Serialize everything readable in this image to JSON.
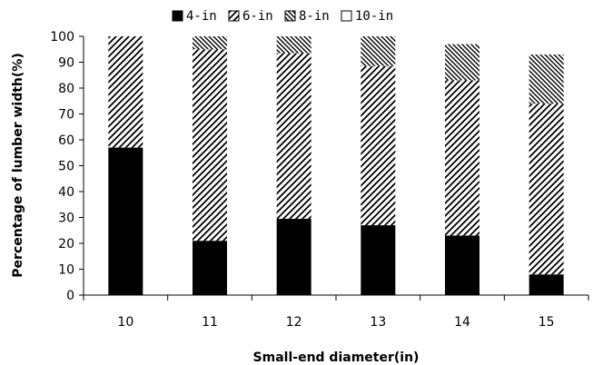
{
  "chart_data": {
    "type": "bar",
    "stacked": true,
    "percent_stacked": true,
    "categories": [
      "10",
      "11",
      "12",
      "13",
      "14",
      "15"
    ],
    "series": [
      {
        "name": "4-in",
        "values": [
          57,
          21,
          29.5,
          27,
          23,
          8
        ]
      },
      {
        "name": "6-in",
        "values": [
          43,
          74,
          64,
          61.5,
          60,
          66
        ]
      },
      {
        "name": "8-in",
        "values": [
          0,
          5,
          6.5,
          11.5,
          14,
          19
        ]
      },
      {
        "name": "10-in",
        "values": [
          0,
          0,
          0,
          0,
          3,
          7
        ]
      }
    ],
    "xlabel": "Small-end diameter(in)",
    "ylabel": "Percentage of lumber width(%)",
    "ylim": [
      0,
      100
    ],
    "yticks": [
      0,
      10,
      20,
      30,
      40,
      50,
      60,
      70,
      80,
      90,
      100
    ],
    "grid": false,
    "legend": "top",
    "fills": {
      "4-in": "solid-black",
      "6-in": "diagonal-hatch-up",
      "8-in": "diagonal-hatch-down",
      "10-in": "white"
    }
  }
}
